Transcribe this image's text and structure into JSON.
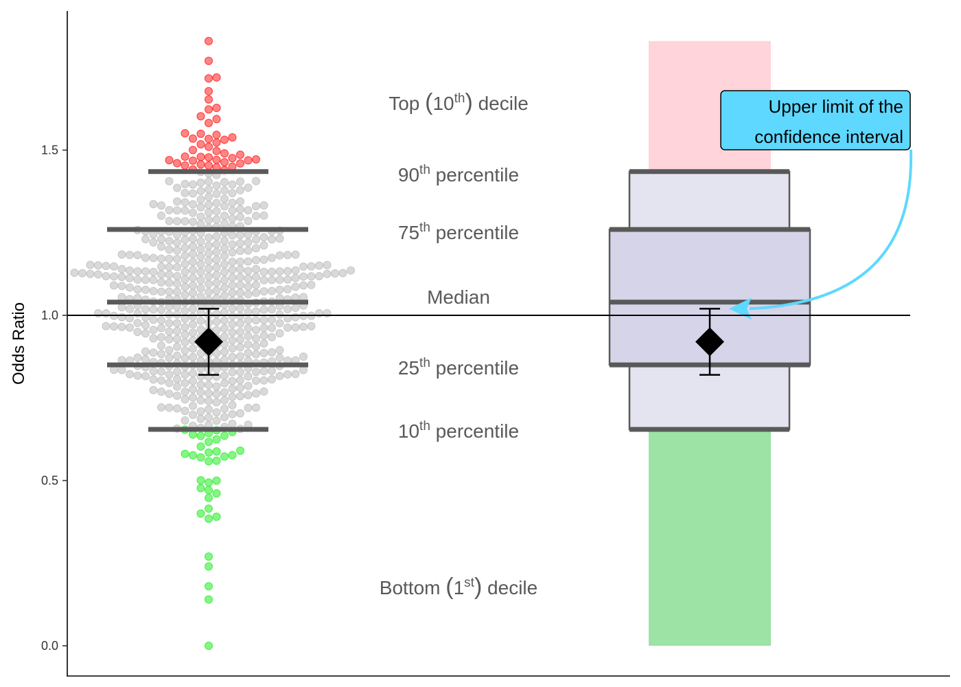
{
  "chart_data": {
    "type": "scatter",
    "ylabel": "Odds Ratio",
    "ylim": [
      -0.08,
      1.93
    ],
    "yticks": [
      {
        "value": 0.0,
        "label": "0.0"
      },
      {
        "value": 0.5,
        "label": "0.5"
      },
      {
        "value": 1.0,
        "label": "1.0"
      },
      {
        "value": 1.5,
        "label": "1.5"
      }
    ],
    "reference_line": 1.0,
    "n_points": 620,
    "max_value": 1.83,
    "min_value": 0.0,
    "percentiles": {
      "p10": 0.655,
      "p25": 0.85,
      "median": 1.04,
      "p75": 1.26,
      "p90": 1.435
    },
    "estimate": {
      "value": 0.92,
      "ci_lower": 0.82,
      "ci_upper": 1.02
    },
    "outlier_points": [
      1.83,
      1.77,
      0.27,
      0.24,
      0.18,
      0.14,
      0.0
    ],
    "labels": {
      "top_decile": {
        "pre": "Top ",
        "lp": "(",
        "base": "10",
        "sup": "th",
        "rp": ")",
        "post": " decile"
      },
      "p90": {
        "base": "90",
        "sup": "th",
        "post": " percentile"
      },
      "p75": {
        "base": "75",
        "sup": "th",
        "post": " percentile"
      },
      "median": {
        "text": "Median"
      },
      "p25": {
        "base": "25",
        "sup": "th",
        "post": " percentile"
      },
      "p10": {
        "base": "10",
        "sup": "th",
        "post": " percentile"
      },
      "bottom_decile": {
        "pre": "Bottom ",
        "lp": "(",
        "base": "1",
        "sup": "st",
        "rp": ")",
        "post": " decile"
      }
    },
    "callout": {
      "lines": [
        "Upper limit of the",
        "confidence interval"
      ]
    },
    "colors": {
      "top_decile": "#ff2020",
      "middle": "#c0c0c0",
      "bottom_decile": "#33ee33",
      "top_text": "#ee3a3a",
      "bottom_text": "#2eaa5a",
      "top_band": "#ffd4da",
      "bottom_band": "#9ce3a5",
      "outer_box": "#e4e3f0",
      "inner_box": "#d6d4e8",
      "percentile_line": "#595959",
      "callout_fill": "#5ed8ff",
      "callout_arrow": "#5ed8ff",
      "estimate": "#000000"
    }
  }
}
